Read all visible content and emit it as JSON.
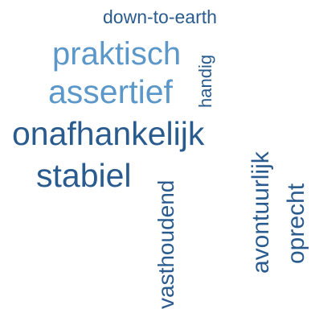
{
  "colors": {
    "dark_blue": "#2a5b8e",
    "light_blue": "#5b98c9"
  },
  "words": {
    "down_to_earth": {
      "text": "down-to-earth",
      "color": "#2a5b8e"
    },
    "praktisch": {
      "text": "praktisch",
      "color": "#5b98c9"
    },
    "assertief": {
      "text": "assertief",
      "color": "#5b98c9"
    },
    "onafhankelijk": {
      "text": "onafhankelijk",
      "color": "#2a5b8e"
    },
    "stabiel": {
      "text": "stabiel",
      "color": "#2a5b8e"
    },
    "handig": {
      "text": "handig",
      "color": "#2a5b8e"
    },
    "vasthoudend": {
      "text": "vasthoudend",
      "color": "#2a5b8e"
    },
    "avontuurlijk": {
      "text": "avontuurlijk",
      "color": "#2a5b8e"
    },
    "oprecht": {
      "text": "oprecht",
      "color": "#2a5b8e"
    }
  }
}
